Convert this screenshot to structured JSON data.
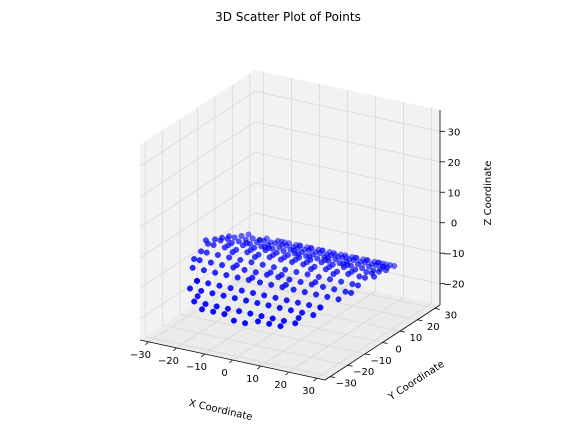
{
  "chart_data": {
    "type": "scatter",
    "projection": "3d",
    "title": "3D Scatter Plot of Points",
    "xlabel": "X Coordinate",
    "ylabel": "Y Coordinate",
    "zlabel": "Z Coordinate",
    "xlim": [
      -33,
      33
    ],
    "ylim": [
      -33,
      33
    ],
    "zlim": [
      -27,
      37
    ],
    "xticks": [
      -30,
      -20,
      -10,
      0,
      10,
      20,
      30
    ],
    "yticks": [
      -30,
      -20,
      -10,
      0,
      10,
      20,
      30
    ],
    "zticks": [
      -20,
      -10,
      0,
      10,
      20,
      30
    ],
    "grid": true,
    "point_color": "#0000ff",
    "pane_colors": {
      "floor": "#ebebeb",
      "left_wall": "#f2f2f2",
      "back_wall": "#f2f2f2"
    },
    "series": [
      {
        "x": [
          30,
          28,
          28,
          28,
          28,
          28,
          28,
          26,
          26,
          26,
          26,
          26,
          26,
          26,
          26,
          26,
          22,
          22,
          22,
          22,
          22,
          22,
          22,
          22,
          22,
          22,
          22,
          22,
          22,
          22,
          22,
          18,
          18,
          18,
          18,
          18,
          18,
          18,
          18,
          18,
          18,
          18,
          18,
          18,
          18,
          18,
          18,
          18,
          18,
          14,
          14,
          14,
          14,
          14,
          14,
          14,
          14,
          14,
          14,
          14,
          14,
          14,
          14,
          14,
          14,
          14,
          14,
          14,
          10,
          10,
          10,
          10,
          10,
          10,
          10,
          10,
          10,
          10,
          10,
          10,
          10,
          10,
          10,
          10,
          10,
          10,
          6,
          6,
          6,
          6,
          6,
          6,
          6,
          6,
          6,
          6,
          6,
          6,
          6,
          6,
          6,
          6,
          6,
          6,
          6,
          2,
          2,
          2,
          2,
          2,
          2,
          2,
          2,
          2,
          2,
          2,
          2,
          2,
          2,
          2,
          2,
          2,
          2,
          2,
          -2,
          -2,
          -2,
          -2,
          -2,
          -2,
          -2,
          -2,
          -2,
          -2,
          -2,
          -2,
          -2,
          -2,
          -2,
          -2,
          -2,
          -2,
          -2,
          -6,
          -6,
          -6,
          -6,
          -6,
          -6,
          -6,
          -6,
          -6,
          -6,
          -6,
          -6,
          -6,
          -6,
          -6,
          -6,
          -6,
          -6,
          -6,
          -10,
          -10,
          -10,
          -10,
          -10,
          -10,
          -10,
          -10,
          -10,
          -10,
          -10,
          -10,
          -10,
          -10,
          -10,
          -10,
          -10,
          -10,
          -14,
          -14,
          -14,
          -14,
          -14,
          -14,
          -14,
          -14,
          -14,
          -14,
          -14,
          -14,
          -14,
          -14,
          -14,
          -14,
          -14,
          -14,
          -14,
          -18,
          -18,
          -18,
          -18,
          -18,
          -18,
          -18,
          -18,
          -18,
          -18,
          -18,
          -18,
          -18,
          -18,
          -18,
          -18,
          -18,
          -18,
          -22,
          -22,
          -22,
          -22,
          -22,
          -22,
          -22,
          -22,
          -22,
          -22,
          -22,
          -22,
          -22,
          -22,
          -22,
          -26,
          -26,
          -26,
          -26,
          -26,
          -26,
          -26,
          -26,
          -26,
          -28,
          -28,
          -28,
          -28,
          -28,
          -28,
          -30
        ],
        "y": [
          0,
          -10,
          -6,
          -2,
          2,
          6,
          10,
          -14,
          -10,
          -6,
          -2,
          2,
          6,
          10,
          14,
          18,
          -22,
          -18,
          -14,
          -10,
          -6,
          -2,
          2,
          6,
          10,
          14,
          18,
          22,
          -18,
          18,
          0,
          -26,
          -22,
          -18,
          -14,
          -10,
          -6,
          -2,
          2,
          6,
          10,
          14,
          18,
          22,
          26,
          -24,
          24,
          -4,
          4,
          -26,
          -22,
          -18,
          -14,
          -10,
          -6,
          -2,
          2,
          6,
          10,
          14,
          18,
          22,
          26,
          -28,
          28,
          -8,
          8,
          0,
          -26,
          -22,
          -18,
          -14,
          -10,
          -6,
          -2,
          2,
          6,
          10,
          14,
          18,
          22,
          26,
          -28,
          28,
          -4,
          4,
          -28,
          -26,
          -22,
          -18,
          -14,
          -10,
          -6,
          -2,
          2,
          6,
          10,
          14,
          18,
          22,
          26,
          28,
          -12,
          12,
          0,
          -29,
          -26,
          -22,
          -18,
          -14,
          -10,
          -6,
          -2,
          2,
          6,
          10,
          14,
          18,
          22,
          26,
          29,
          -8,
          8,
          0,
          -29,
          -26,
          -22,
          -18,
          -14,
          -10,
          -6,
          -2,
          2,
          6,
          10,
          14,
          18,
          22,
          26,
          29,
          -8,
          8,
          0,
          -28,
          -26,
          -22,
          -18,
          -14,
          -10,
          -6,
          -2,
          2,
          6,
          10,
          14,
          18,
          22,
          26,
          28,
          -12,
          12,
          0,
          -26,
          -22,
          -18,
          -14,
          -10,
          -6,
          -2,
          2,
          6,
          10,
          14,
          18,
          22,
          26,
          -28,
          28,
          -4,
          4,
          -26,
          -22,
          -18,
          -14,
          -10,
          -6,
          -2,
          2,
          6,
          10,
          14,
          18,
          22,
          26,
          -28,
          28,
          -8,
          8,
          0,
          -26,
          -22,
          -18,
          -14,
          -10,
          -6,
          -2,
          2,
          6,
          10,
          14,
          18,
          22,
          26,
          -24,
          24,
          -4,
          4,
          -22,
          -18,
          -14,
          -10,
          -6,
          -2,
          2,
          6,
          10,
          14,
          18,
          22,
          -18,
          18,
          0,
          -14,
          -10,
          -6,
          -2,
          2,
          6,
          10,
          14,
          18,
          -10,
          -6,
          -2,
          2,
          6,
          10,
          0
        ],
        "z": [
          -6,
          -8,
          -7,
          -6,
          -6,
          -7,
          -8,
          -9,
          -8,
          -7,
          -6,
          -6,
          -7,
          -8,
          -9,
          -10,
          -12,
          -11,
          -9,
          -8,
          -7,
          -6,
          -6,
          -7,
          -8,
          -9,
          -11,
          -12,
          -11,
          -11,
          -6,
          -14,
          -12,
          -11,
          -9,
          -8,
          -7,
          -6,
          -6,
          -7,
          -8,
          -9,
          -11,
          -12,
          -14,
          -13,
          -13,
          -6,
          -6,
          -14,
          -12,
          -11,
          -9,
          -8,
          -7,
          -6,
          -6,
          -7,
          -8,
          -9,
          -11,
          -12,
          -14,
          -15,
          -15,
          -8,
          -8,
          -6,
          -14,
          -12,
          -11,
          -9,
          -8,
          -7,
          -6,
          -6,
          -7,
          -8,
          -9,
          -11,
          -12,
          -14,
          -15,
          -15,
          -6,
          -6,
          -15,
          -14,
          -12,
          -11,
          -9,
          -8,
          -7,
          -6,
          -6,
          -7,
          -8,
          -9,
          -11,
          -12,
          -14,
          -15,
          -9,
          -9,
          -6,
          -16,
          -14,
          -12,
          -11,
          -9,
          -8,
          -7,
          -6,
          -6,
          -7,
          -8,
          -9,
          -11,
          -12,
          -14,
          -16,
          -8,
          -8,
          -6,
          -16,
          -14,
          -12,
          -11,
          -9,
          -8,
          -7,
          -6,
          -6,
          -7,
          -8,
          -9,
          -11,
          -12,
          -14,
          -16,
          -8,
          -8,
          -6,
          -15,
          -14,
          -12,
          -11,
          -9,
          -8,
          -7,
          -6,
          -6,
          -7,
          -8,
          -9,
          -11,
          -12,
          -14,
          -15,
          -9,
          -9,
          -6,
          -14,
          -12,
          -11,
          -9,
          -8,
          -7,
          -6,
          -6,
          -7,
          -8,
          -9,
          -11,
          -12,
          -14,
          -15,
          -15,
          -6,
          -6,
          -14,
          -12,
          -11,
          -9,
          -8,
          -7,
          -6,
          -6,
          -7,
          -8,
          -9,
          -11,
          -12,
          -14,
          -15,
          -15,
          -8,
          -8,
          -6,
          -14,
          -12,
          -11,
          -9,
          -8,
          -7,
          -6,
          -6,
          -7,
          -8,
          -9,
          -11,
          -12,
          -14,
          -13,
          -13,
          -6,
          -6,
          -12,
          -11,
          -9,
          -8,
          -7,
          -6,
          -6,
          -7,
          -8,
          -9,
          -11,
          -12,
          -11,
          -11,
          -6,
          -9,
          -8,
          -7,
          -6,
          -6,
          -7,
          -8,
          -9,
          -10,
          -8,
          -7,
          -6,
          -6,
          -7,
          -8,
          -6
        ]
      }
    ]
  }
}
